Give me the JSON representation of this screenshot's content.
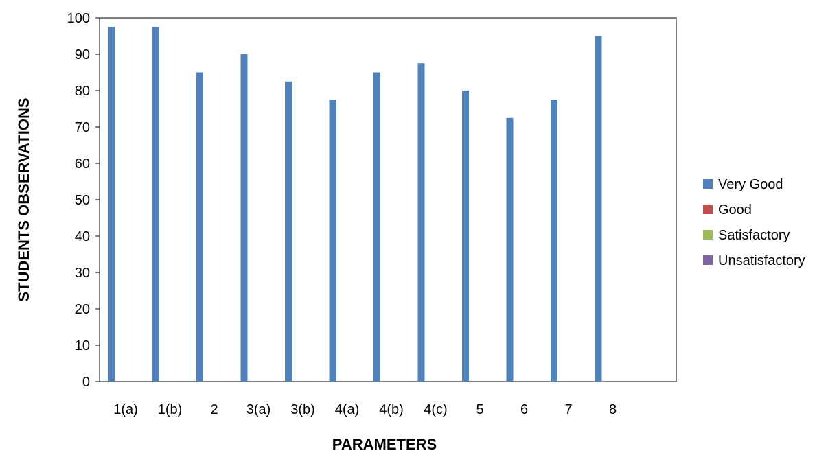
{
  "chart_data": {
    "type": "bar",
    "title": "",
    "xlabel": "PARAMETERS",
    "ylabel": "STUDENTS OBSERVATIONS",
    "ylim": [
      0,
      100
    ],
    "yticks": [
      0,
      10,
      20,
      30,
      40,
      50,
      60,
      70,
      80,
      90,
      100
    ],
    "grid": false,
    "legend_position": "right",
    "categories": [
      "1(a)",
      "1(b)",
      "2",
      "3(a)",
      "3(b)",
      "4(a)",
      "4(b)",
      "4(c)",
      "5",
      "6",
      "7",
      "8"
    ],
    "series": [
      {
        "name": "Very Good",
        "color": "#4F81BD",
        "values": [
          97.5,
          97.5,
          85,
          90,
          82.5,
          77.5,
          85,
          87.5,
          80,
          72.5,
          77.5,
          95
        ]
      },
      {
        "name": "Good",
        "color": "#C0504D",
        "values": [
          0,
          0,
          0,
          0,
          0,
          0,
          0,
          0,
          0,
          0,
          0,
          0
        ]
      },
      {
        "name": "Satisfactory",
        "color": "#9BBB59",
        "values": [
          0,
          0,
          0,
          0,
          0,
          0,
          0,
          0,
          0,
          0,
          0,
          0
        ]
      },
      {
        "name": "Unsatisfactory",
        "color": "#8064A2",
        "values": [
          0,
          0,
          0,
          0,
          0,
          0,
          0,
          0,
          0,
          0,
          0,
          0
        ]
      }
    ]
  }
}
